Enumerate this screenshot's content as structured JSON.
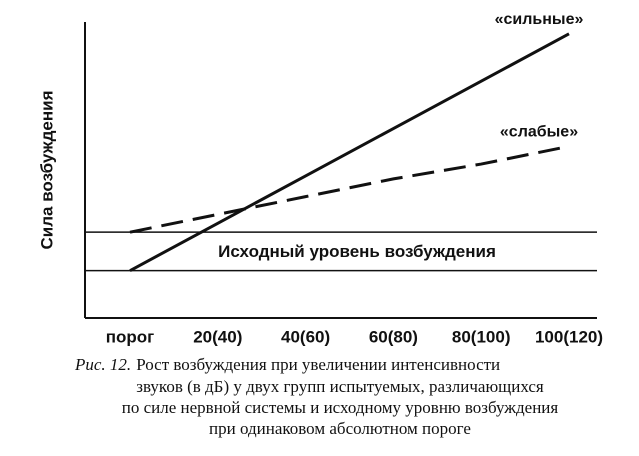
{
  "chart_data": {
    "type": "line",
    "y_label": "Сила возбуждения",
    "categories": [
      "порог",
      "20(40)",
      "40(60)",
      "60(80)",
      "80(100)",
      "100(120)"
    ],
    "series": [
      {
        "name": "«сильные»",
        "color": "#111111",
        "dashed": false,
        "values": [
          16,
          32,
          48,
          64,
          80,
          96
        ]
      },
      {
        "name": "«слабые»",
        "color": "#111111",
        "dashed": true,
        "values": [
          29,
          35,
          41,
          47,
          52,
          58
        ]
      }
    ],
    "baseline": {
      "label": "Исходный уровень возбуждения",
      "values": [
        16,
        29
      ]
    },
    "ylim": [
      0,
      100
    ],
    "caption": {
      "label": "Рис. 12.",
      "lines": [
        "Рост возбуждения при увеличении интенсивности",
        "звуков (в дБ) у двух групп испытуемых, различающихся",
        "по силе нервной системы и исходному уровню возбуждения",
        "при одинаковом абсолютном пороге"
      ]
    }
  }
}
